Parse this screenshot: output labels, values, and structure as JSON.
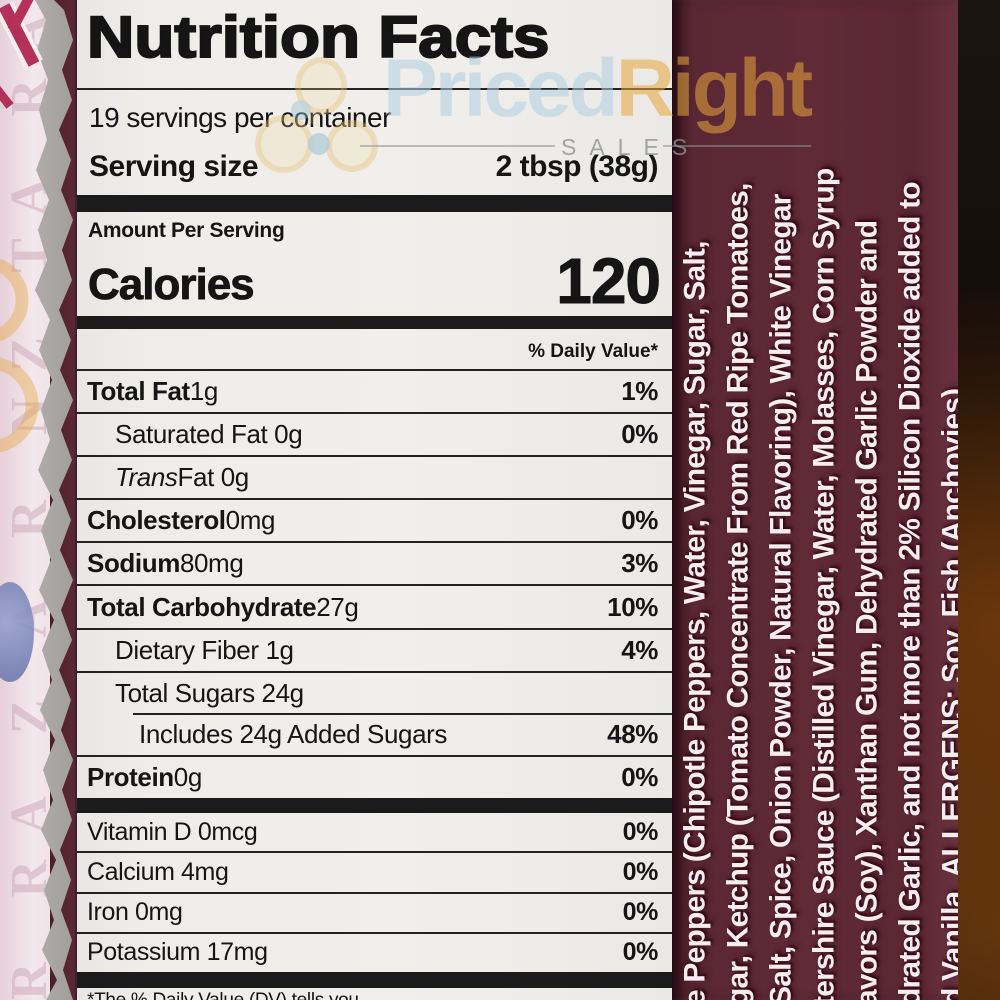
{
  "watermark": {
    "brand_blue": "Priced",
    "brand_orange": "Right",
    "sales": "SALES"
  },
  "nutrition_label": {
    "title": "Nutrition Facts",
    "servings_per_container": "19 servings per container",
    "serving_size_label": "Serving size",
    "serving_size_value": "2 tbsp (38g)",
    "amount_per_serving": "Amount Per Serving",
    "calories_label": "Calories",
    "calories_value": "120",
    "daily_value_header": "% Daily Value*",
    "nutrient_rows": [
      {
        "bold": "Total Fat",
        "rest": " 1g",
        "dv": "1%",
        "indent": 0
      },
      {
        "rest": "Saturated Fat 0g",
        "dv": "0%",
        "indent": 1
      },
      {
        "italic": "Trans",
        "rest": " Fat 0g",
        "dv": "",
        "indent": 1
      },
      {
        "bold": "Cholesterol",
        "rest": " 0mg",
        "dv": "0%",
        "indent": 0
      },
      {
        "bold": "Sodium",
        "rest": " 80mg",
        "dv": "3%",
        "indent": 0
      },
      {
        "bold": "Total Carbohydrate",
        "rest": " 27g",
        "dv": "10%",
        "indent": 0
      },
      {
        "rest": "Dietary Fiber 1g",
        "dv": "4%",
        "indent": 1
      },
      {
        "rest": "Total Sugars 24g",
        "dv": "",
        "indent": 1
      },
      {
        "rest": "Includes 24g Added Sugars",
        "dv": "48%",
        "indent": 2,
        "partial_top": true
      },
      {
        "bold": "Protein",
        "rest": " 0g",
        "dv": "0%",
        "indent": 0
      }
    ],
    "vitamin_rows": [
      {
        "name": "Vitamin D 0mcg",
        "dv": "0%"
      },
      {
        "name": "Calcium 4mg",
        "dv": "0%"
      },
      {
        "name": "Iron 0mg",
        "dv": "0%"
      },
      {
        "name": "Potassium 17mg",
        "dv": "0%"
      }
    ],
    "footnote_fragment": "*The % Daily Value (DV) tells you"
  },
  "ingredients_panel": {
    "lines": [
      "e Peppers (Chipotle Peppers, Water, Vinegar, Sugar, Salt,",
      "gar, Ketchup (Tomato Concentrate From Red Ripe Tomatoes,",
      "Salt, Spice, Onion Powder, Natural Flavoring), White Vinegar",
      "tershire Sauce (Distilled Vinegar, Water, Molasses, Corn Syrup",
      "avors (Soy), Xanthan Gum, Dehydrated Garlic Powder and",
      "drated Garlic, and not more than 2% Silicon Dioxide added to",
      "d Vanilla.  ALLERGENS: Soy, Fish (Anchovies)"
    ]
  },
  "left_edge": {
    "letter_fragments": [
      "R",
      "RA",
      "Z",
      "A",
      "R",
      "NZ",
      "TA",
      "RA",
      "Z"
    ]
  },
  "colors": {
    "panel_bg": "#efedea",
    "ink": "#151515",
    "maroon": "#5a2734",
    "ing_text": "#f6edf0",
    "pink_letter": "#c8a4b4",
    "wm_blue": "#aecfe2",
    "wm_orange": "#e8a63c",
    "wm_gray": "#8d9296",
    "bg_dark": "#150c07"
  }
}
